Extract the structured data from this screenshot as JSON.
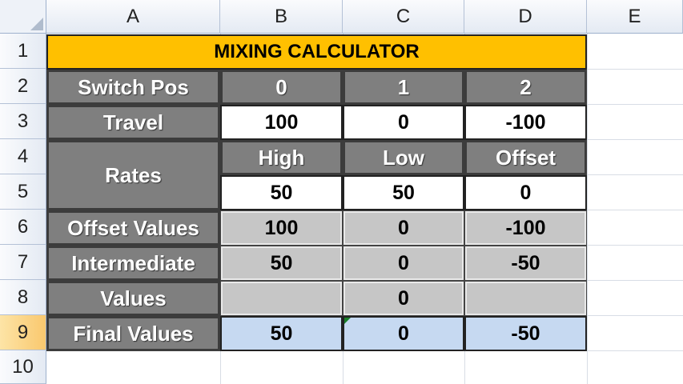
{
  "columns": [
    "A",
    "B",
    "C",
    "D",
    "E"
  ],
  "rows": [
    "1",
    "2",
    "3",
    "4",
    "5",
    "6",
    "7",
    "8",
    "9",
    "10"
  ],
  "table": {
    "title": "MIXING CALCULATOR",
    "switch_pos": {
      "label": "Switch Pos",
      "values": [
        "0",
        "1",
        "2"
      ]
    },
    "travel": {
      "label": "Travel",
      "values": [
        "100",
        "0",
        "-100"
      ]
    },
    "rates": {
      "label": "Rates",
      "headers": [
        "High",
        "Low",
        "Offset"
      ],
      "values": [
        "50",
        "50",
        "0"
      ]
    },
    "offset_values": {
      "label": "Offset Values",
      "values": [
        "100",
        "0",
        "-100"
      ]
    },
    "intermediate": {
      "label_line1": "Intermediate",
      "label_line2": "Values",
      "row7": [
        "50",
        "0",
        "-50"
      ],
      "row8": [
        "",
        "0",
        ""
      ]
    },
    "final_values": {
      "label": "Final Values",
      "values": [
        "50",
        "0",
        "-50"
      ]
    }
  },
  "colors": {
    "title_bg": "#ffc000",
    "label_bg": "#7f7f7f",
    "calc_bg": "#c6c6c6",
    "final_bg": "#c6d9f1",
    "selected_row": "#f9c86e"
  }
}
